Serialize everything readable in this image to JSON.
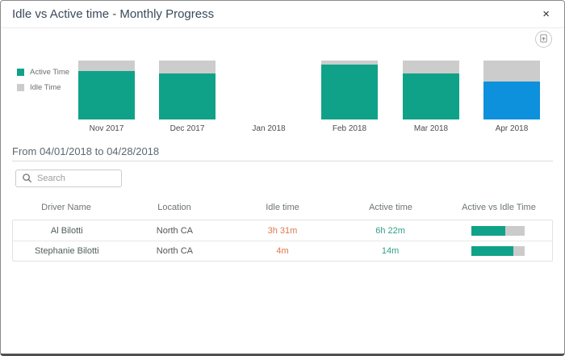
{
  "modal": {
    "title": "Idle vs Active time - Monthly Progress",
    "close_label": "×"
  },
  "colors": {
    "active": "#10a288",
    "idle": "#cccccc",
    "selected_month": "#0e91dc",
    "idle_text": "#e0764d",
    "active_text": "#2f9e8a"
  },
  "chart_data": {
    "type": "bar",
    "stacked": true,
    "unit": "percent_of_total",
    "categories": [
      "Nov 2017",
      "Dec 2017",
      "Jan 2018",
      "Feb 2018",
      "Mar 2018",
      "Apr 2018"
    ],
    "series": [
      {
        "name": "Active Time",
        "color": "#10a288",
        "values": [
          82,
          78,
          null,
          93,
          78,
          65
        ]
      },
      {
        "name": "Idle Time",
        "color": "#cccccc",
        "values": [
          18,
          22,
          null,
          7,
          22,
          35
        ]
      }
    ],
    "selected_category": "Apr 2018",
    "selected_color": "#0e91dc",
    "legend_position": "left",
    "axes_visible": false,
    "note": "Jan 2018 has no data"
  },
  "filters": {
    "date_range": "From 04/01/2018 to 04/28/2018",
    "search_placeholder": "Search"
  },
  "table": {
    "columns": [
      "Driver Name",
      "Location",
      "Idle time",
      "Active time",
      "Active vs Idle Time"
    ],
    "rows": [
      {
        "driver": "Al Bilotti",
        "location": "North CA",
        "idle_time": "3h 31m",
        "active_time": "6h 22m",
        "active_pct": 64
      },
      {
        "driver": "Stephanie Bilotti",
        "location": "North CA",
        "idle_time": "4m",
        "active_time": "14m",
        "active_pct": 78
      }
    ]
  }
}
